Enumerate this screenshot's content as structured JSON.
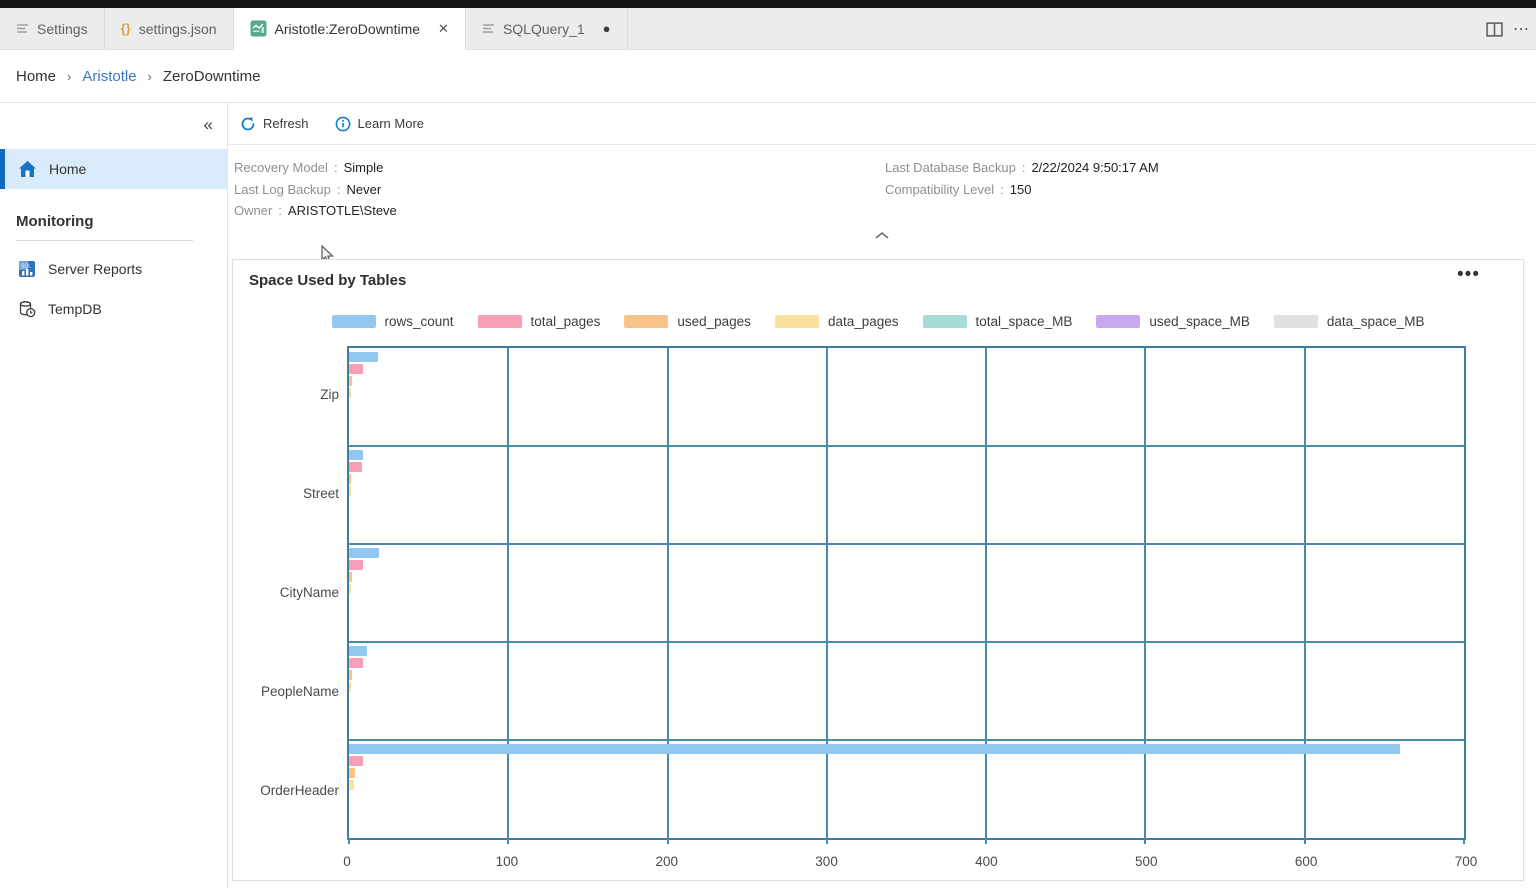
{
  "tabs": {
    "items": [
      {
        "label": "Settings",
        "icon": "list-icon",
        "active": false
      },
      {
        "label": "settings.json",
        "icon": "braces-icon",
        "active": false
      },
      {
        "label": "Aristotle:ZeroDowntime",
        "icon": "dashboard-icon",
        "active": true,
        "close_glyph": "✕"
      },
      {
        "label": "SQLQuery_1",
        "icon": "list-icon",
        "active": false,
        "dirty_glyph": "●"
      }
    ],
    "overflow_glyph": "⋯"
  },
  "breadcrumb": {
    "separator": "›",
    "items": [
      {
        "label": "Home",
        "link": false
      },
      {
        "label": "Aristotle",
        "link": true
      },
      {
        "label": "ZeroDowntime",
        "link": false
      }
    ]
  },
  "sidebar": {
    "collapse_glyph": "«",
    "home_item": {
      "label": "Home",
      "icon": "home-icon"
    },
    "section": {
      "title": "Monitoring",
      "items": [
        {
          "label": "Server Reports",
          "icon": "server-reports-icon"
        },
        {
          "label": "TempDB",
          "icon": "tempdb-icon"
        }
      ]
    }
  },
  "toolbar": {
    "refresh_label": "Refresh",
    "learn_more_label": "Learn More"
  },
  "properties": {
    "left": [
      {
        "label": "Recovery Model",
        "value": "Simple"
      },
      {
        "label": "Last Log Backup",
        "value": "Never"
      },
      {
        "label": "Owner",
        "value": "ARISTOTLE\\Steve"
      }
    ],
    "right": [
      {
        "label": "Last Database Backup",
        "value": "2/22/2024 9:50:17 AM"
      },
      {
        "label": "Compatibility Level",
        "value": "150"
      }
    ]
  },
  "panel": {
    "title": "Space Used by Tables",
    "menu_glyph": "•••"
  },
  "chart_data": {
    "type": "bar",
    "orientation": "horizontal",
    "title": "Space Used by Tables",
    "categories": [
      "Zip",
      "Street",
      "CityName",
      "PeopleName",
      "OrderHeader"
    ],
    "series": [
      {
        "name": "rows_count",
        "color": "#92c7f0",
        "values": [
          18,
          9,
          19,
          11,
          660
        ]
      },
      {
        "name": "total_pages",
        "color": "#f79fb6",
        "values": [
          9,
          8,
          9,
          9,
          9
        ]
      },
      {
        "name": "used_pages",
        "color": "#f8c289",
        "values": [
          2,
          1,
          2,
          2,
          4
        ]
      },
      {
        "name": "data_pages",
        "color": "#fbe09e",
        "values": [
          1,
          1,
          1,
          1,
          3
        ]
      },
      {
        "name": "total_space_MB",
        "color": "#a5dcd3",
        "values": [
          0,
          0,
          0,
          0,
          0
        ]
      },
      {
        "name": "used_space_MB",
        "color": "#c6a9f1",
        "values": [
          0,
          0,
          0,
          0,
          0
        ]
      },
      {
        "name": "data_space_MB",
        "color": "#e1e1e1",
        "values": [
          0,
          0,
          0,
          0,
          0
        ]
      }
    ],
    "xticks": [
      0,
      100,
      200,
      300,
      400,
      500,
      600,
      700
    ],
    "xlim": [
      0,
      700
    ],
    "grid": true,
    "legend_position": "top"
  }
}
